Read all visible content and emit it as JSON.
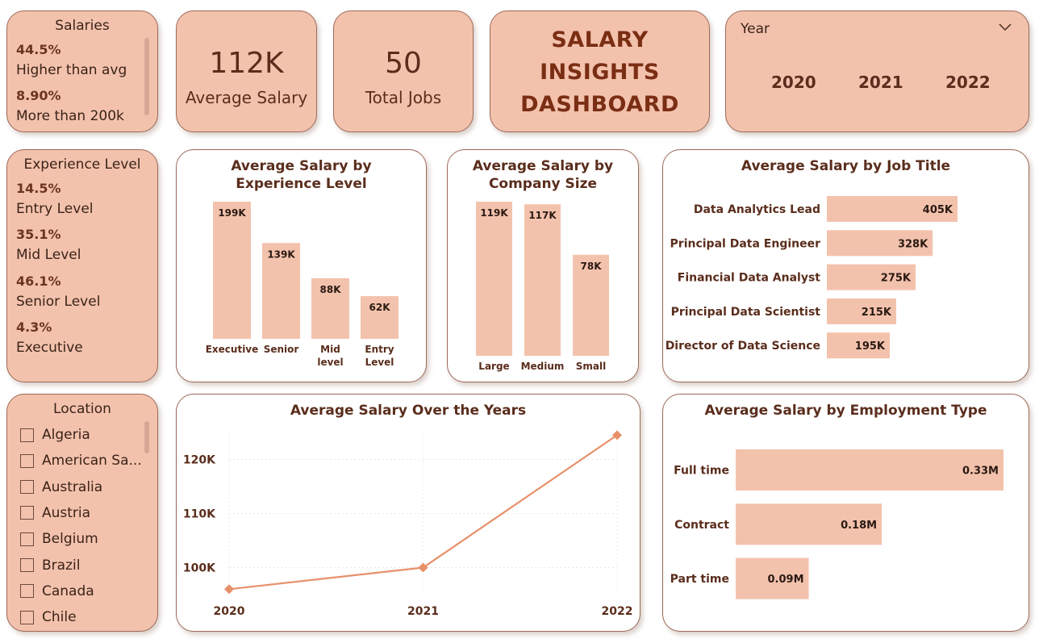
{
  "salaries": {
    "title": "Salaries",
    "items": [
      {
        "pct": "44.5%",
        "label": "Higher than avg"
      },
      {
        "pct": "8.90%",
        "label": "More than 200k"
      }
    ]
  },
  "kpis": [
    {
      "value": "112K",
      "label": "Average Salary"
    },
    {
      "value": "50",
      "label": "Total Jobs"
    }
  ],
  "dashboard": {
    "title_line1": "SALARY",
    "title_line2": "INSIGHTS",
    "title_line3": "DASHBOARD"
  },
  "year_slicer": {
    "title": "Year",
    "options": [
      "2020",
      "2021",
      "2022"
    ],
    "icon": "chevron-down-icon"
  },
  "experience_slicer": {
    "title": "Experience Level",
    "items": [
      {
        "pct": "14.5%",
        "label": "Entry Level"
      },
      {
        "pct": "35.1%",
        "label": "Mid Level"
      },
      {
        "pct": "46.1%",
        "label": "Senior Level"
      },
      {
        "pct": "4.3%",
        "label": "Executive"
      }
    ]
  },
  "location_slicer": {
    "title": "Location",
    "items": [
      "Algeria",
      "American Sa...",
      "Australia",
      "Austria",
      "Belgium",
      "Brazil",
      "Canada",
      "Chile"
    ]
  },
  "colors": {
    "bar": "#f3c2ad",
    "line": "#e8906a",
    "text": "#5a2d1c"
  },
  "chart_data": [
    {
      "type": "bar",
      "title": "Average Salary by Experience Level",
      "categories": [
        "Executive",
        "Senior",
        "Mid level",
        "Entry Level"
      ],
      "values": [
        199,
        139,
        88,
        62
      ],
      "labels": [
        "199K",
        "139K",
        "88K",
        "62K"
      ],
      "unit": "K"
    },
    {
      "type": "bar",
      "title": "Average Salary by Company Size",
      "categories": [
        "Large",
        "Medium",
        "Small"
      ],
      "values": [
        119,
        117,
        78
      ],
      "labels": [
        "119K",
        "117K",
        "78K"
      ],
      "unit": "K"
    },
    {
      "type": "bar",
      "orientation": "horizontal",
      "title": "Average Salary by Job Title",
      "categories": [
        "Data Analytics Lead",
        "Principal Data Engineer",
        "Financial Data Analyst",
        "Principal Data Scientist",
        "Director of Data Science"
      ],
      "values": [
        405,
        328,
        275,
        215,
        195
      ],
      "labels": [
        "405K",
        "328K",
        "275K",
        "215K",
        "195K"
      ],
      "unit": "K"
    },
    {
      "type": "line",
      "title": "Average Salary Over the Years",
      "x": [
        "2020",
        "2021",
        "2022"
      ],
      "y": [
        96,
        100,
        124.5
      ],
      "yticks": [
        100,
        110,
        120
      ],
      "ytick_labels": [
        "100K",
        "110K",
        "120K"
      ],
      "ylim": [
        95,
        125
      ],
      "grid": true
    },
    {
      "type": "bar",
      "orientation": "horizontal",
      "title": "Average Salary by Employment Type",
      "categories": [
        "Full time",
        "Contract",
        "Part time"
      ],
      "values": [
        0.33,
        0.18,
        0.09
      ],
      "labels": [
        "0.33M",
        "0.18M",
        "0.09M"
      ],
      "unit": "M"
    }
  ]
}
